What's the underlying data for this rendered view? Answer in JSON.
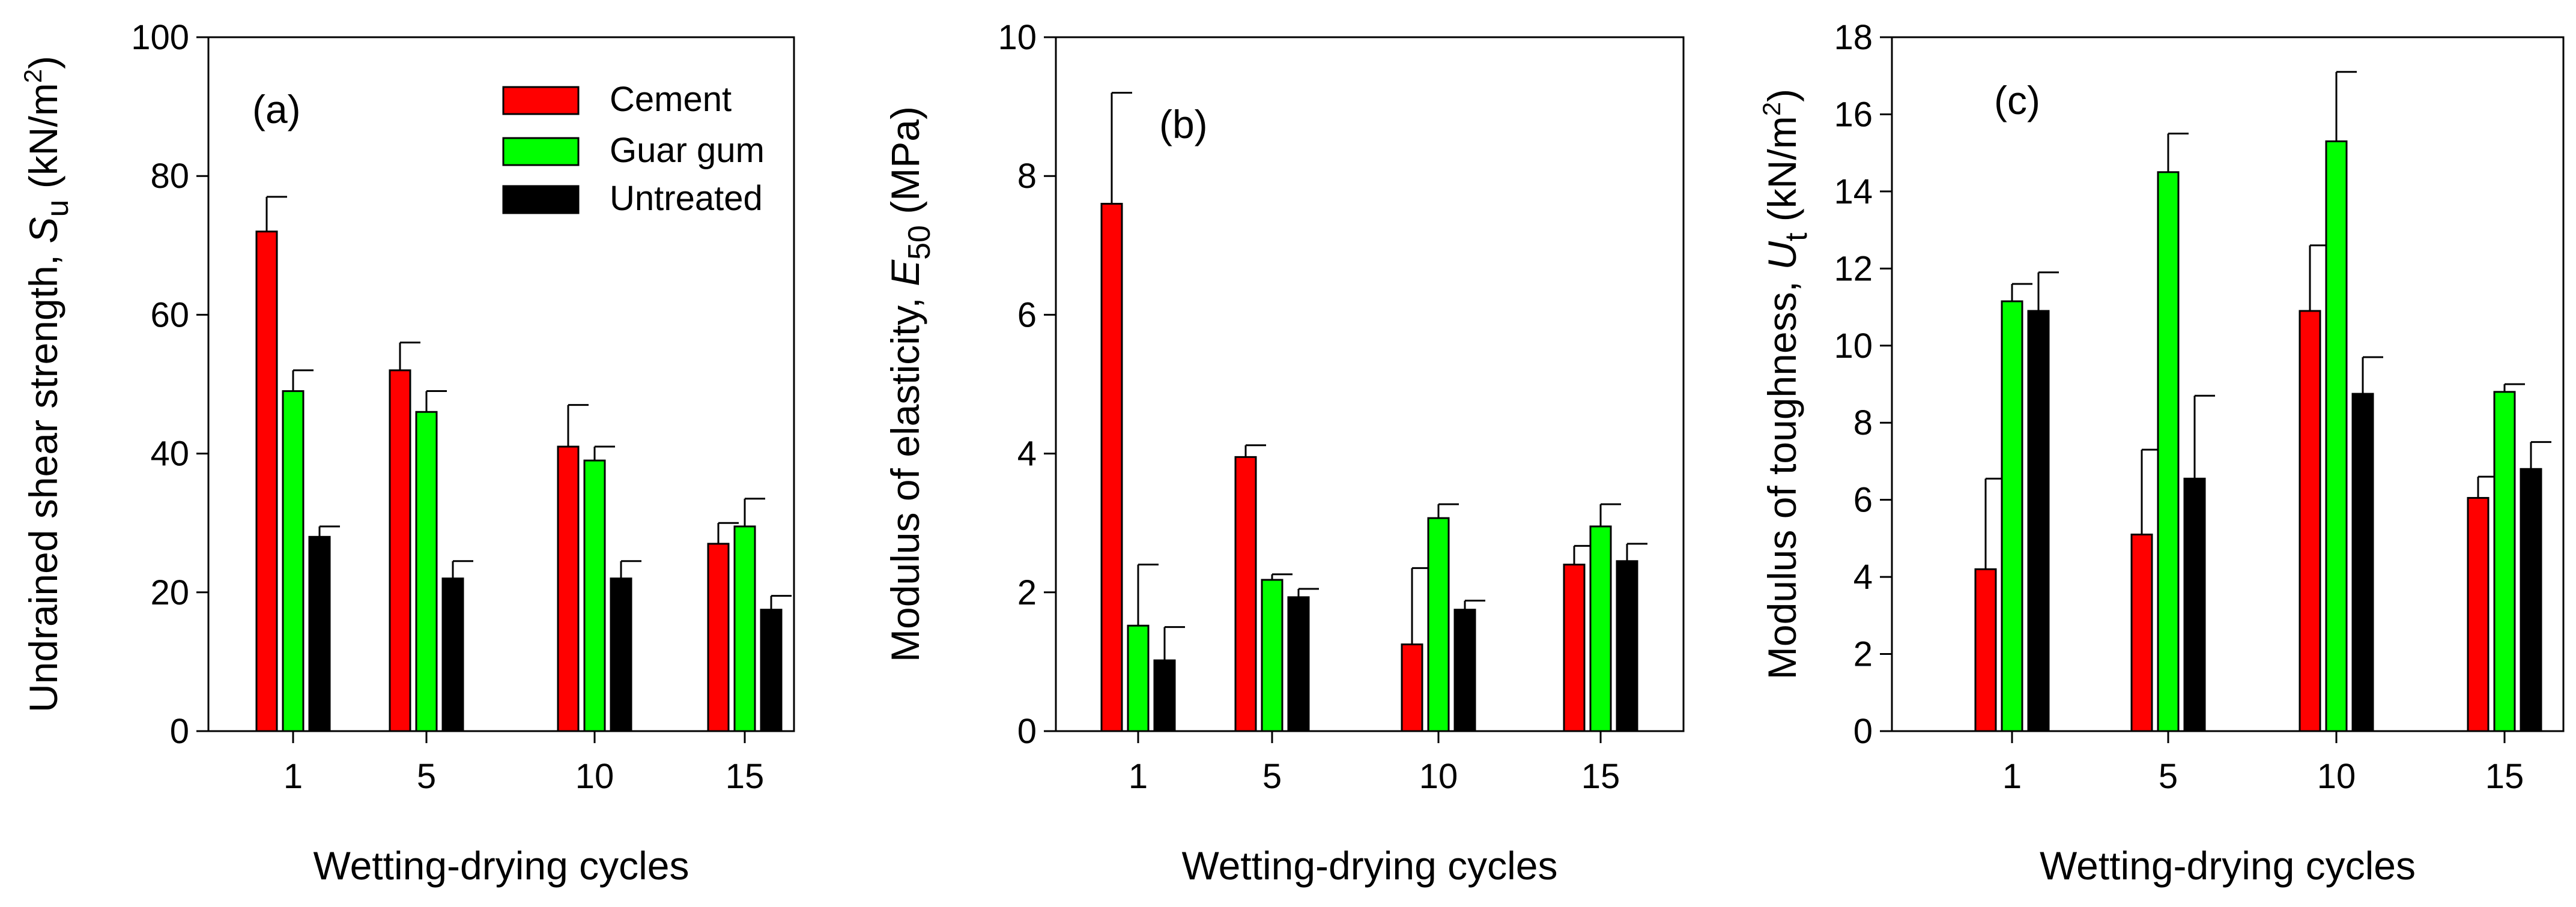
{
  "legend": {
    "cement": "Cement",
    "guar": "Guar gum",
    "untreated": "Untreated"
  },
  "colors": {
    "cement": "#ff0000",
    "guar": "#00ff00",
    "untreated": "#000000"
  },
  "chart_data": [
    {
      "type": "bar",
      "panel_label": "(a)",
      "xlabel": "Wetting-drying cycles",
      "ylabel": {
        "main": "Undrained shear strength, ",
        "symbol": "S",
        "sub": "u",
        "unit": " (kN/m",
        "sup": "2",
        "close": ")"
      },
      "ylim": [
        0,
        100
      ],
      "yticks": [
        0,
        20,
        40,
        60,
        80,
        100
      ],
      "categories": [
        "1",
        "5",
        "10",
        "15"
      ],
      "series": [
        {
          "name": "Cement",
          "values": [
            72,
            52,
            41,
            27
          ],
          "errors": [
            5,
            4,
            6,
            3
          ]
        },
        {
          "name": "Guar gum",
          "values": [
            49,
            46,
            39,
            29.5
          ],
          "errors": [
            3,
            3,
            2,
            4
          ]
        },
        {
          "name": "Untreated",
          "values": [
            28,
            22,
            22,
            17.5
          ],
          "errors": [
            1.5,
            2.5,
            2.5,
            2
          ]
        }
      ]
    },
    {
      "type": "bar",
      "panel_label": "(b)",
      "xlabel": "Wetting-drying cycles",
      "ylabel": {
        "main": "Modulus of elasticity, ",
        "symbol": "E",
        "sub": "50",
        "unit": " (MPa)",
        "sup": "",
        "close": ""
      },
      "ylim": [
        0,
        10
      ],
      "yticks": [
        0,
        2,
        4,
        6,
        8,
        10
      ],
      "categories": [
        "1",
        "5",
        "10",
        "15"
      ],
      "series": [
        {
          "name": "Cement",
          "values": [
            7.6,
            3.95,
            1.25,
            2.4
          ],
          "errors": [
            1.6,
            0.17,
            1.1,
            0.27
          ]
        },
        {
          "name": "Guar gum",
          "values": [
            1.52,
            2.18,
            3.07,
            2.95
          ],
          "errors": [
            0.88,
            0.08,
            0.2,
            0.32
          ]
        },
        {
          "name": "Untreated",
          "values": [
            1.02,
            1.93,
            1.75,
            2.45
          ],
          "errors": [
            0.48,
            0.12,
            0.13,
            0.25
          ]
        }
      ]
    },
    {
      "type": "bar",
      "panel_label": "(c)",
      "xlabel": "Wetting-drying cycles",
      "ylabel": {
        "main": "Modulus of toughness, ",
        "symbol": "U",
        "sub": "t",
        "unit": " (kN/m",
        "sup": "2",
        "close": ")"
      },
      "ylim": [
        0,
        18
      ],
      "yticks": [
        0,
        2,
        4,
        6,
        8,
        10,
        12,
        14,
        16,
        18
      ],
      "categories": [
        "1",
        "5",
        "10",
        "15"
      ],
      "series": [
        {
          "name": "Cement",
          "values": [
            4.2,
            5.1,
            10.9,
            6.05
          ],
          "errors": [
            2.35,
            2.2,
            1.7,
            0.55
          ]
        },
        {
          "name": "Guar gum",
          "values": [
            11.15,
            14.5,
            15.3,
            8.8
          ],
          "errors": [
            0.45,
            1.0,
            1.8,
            0.2
          ]
        },
        {
          "name": "Untreated",
          "values": [
            10.9,
            6.55,
            8.75,
            6.8
          ],
          "errors": [
            1.0,
            2.15,
            0.95,
            0.7
          ]
        }
      ]
    }
  ]
}
